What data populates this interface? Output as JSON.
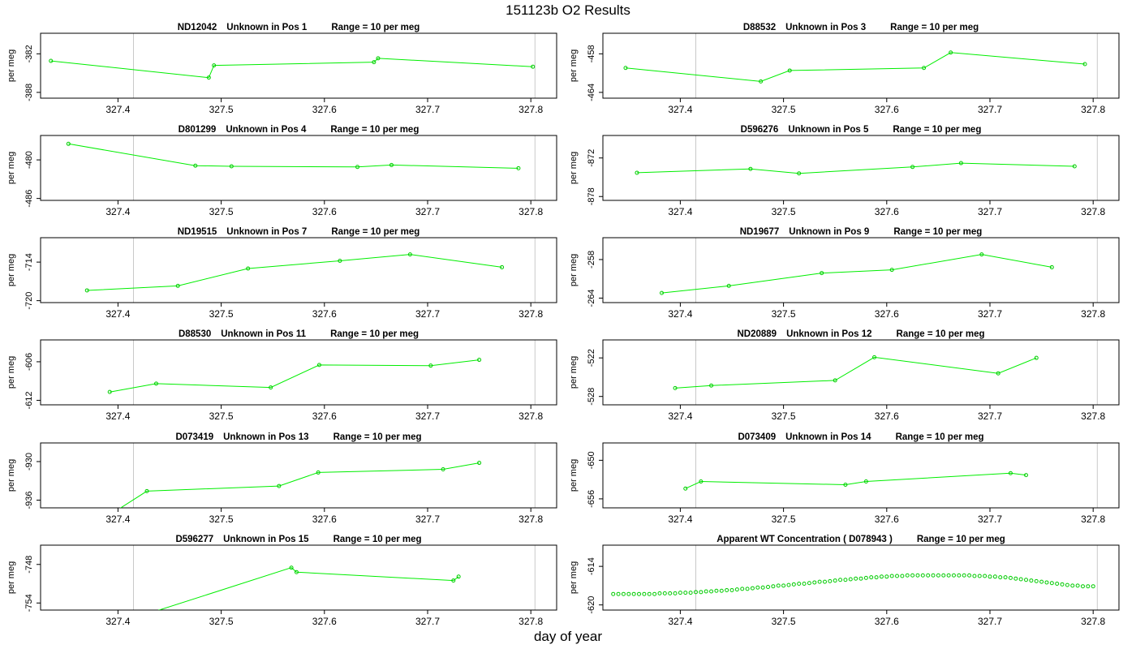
{
  "title": "151123b  O2 Results",
  "xlabel": "day of year",
  "colors": {
    "series": "#00ee00",
    "marker": "#00cc00",
    "vline": "#c8c8c8",
    "axis": "#000000"
  },
  "chart_data": [
    {
      "type": "line",
      "id": "ND12042",
      "pos": "Unknown in Pos 1",
      "range": "Range = 10 per meg",
      "ylabel": "per meg",
      "xlim": [
        327.325,
        327.825
      ],
      "ylim": [
        -388.9,
        -378.8
      ],
      "yticks": [
        -388,
        -382
      ],
      "xticks": [
        327.4,
        327.5,
        327.6,
        327.7,
        327.8
      ],
      "vlines": [
        327.415,
        327.804
      ],
      "x": [
        327.335,
        327.488,
        327.493,
        327.648,
        327.652,
        327.802
      ],
      "y": [
        -383.1,
        -385.7,
        -383.8,
        -383.3,
        -382.7,
        -384.0
      ]
    },
    {
      "type": "line",
      "id": "D88532",
      "pos": "Unknown in Pos 3",
      "range": "Range = 10 per meg",
      "ylabel": "per meg",
      "xlim": [
        327.325,
        327.825
      ],
      "ylim": [
        -464.9,
        -454.8
      ],
      "yticks": [
        -464,
        -458
      ],
      "xticks": [
        327.4,
        327.5,
        327.6,
        327.7,
        327.8
      ],
      "vlines": [
        327.415,
        327.804
      ],
      "x": [
        327.347,
        327.478,
        327.506,
        327.636,
        327.662,
        327.792
      ],
      "y": [
        -460.2,
        -462.3,
        -460.6,
        -460.2,
        -457.8,
        -459.6
      ]
    },
    {
      "type": "line",
      "id": "D801299",
      "pos": "Unknown in Pos 4",
      "range": "Range = 10 per meg",
      "ylabel": "per meg",
      "xlim": [
        327.325,
        327.825
      ],
      "ylim": [
        -486.3,
        -476.2
      ],
      "yticks": [
        -486,
        -480
      ],
      "xticks": [
        327.4,
        327.5,
        327.6,
        327.7,
        327.8
      ],
      "vlines": [
        327.415,
        327.804
      ],
      "x": [
        327.352,
        327.475,
        327.51,
        327.632,
        327.665,
        327.788
      ],
      "y": [
        -477.5,
        -480.9,
        -481.0,
        -481.1,
        -480.8,
        -481.3
      ]
    },
    {
      "type": "line",
      "id": "D596276",
      "pos": "Unknown in Pos 5",
      "range": "Range = 10 per meg",
      "ylabel": "per meg",
      "xlim": [
        327.325,
        327.825
      ],
      "ylim": [
        -878.6,
        -868.5
      ],
      "yticks": [
        -878,
        -872
      ],
      "xticks": [
        327.4,
        327.5,
        327.6,
        327.7,
        327.8
      ],
      "vlines": [
        327.415,
        327.804
      ],
      "x": [
        327.358,
        327.468,
        327.515,
        327.625,
        327.672,
        327.782
      ],
      "y": [
        -874.3,
        -873.7,
        -874.4,
        -873.4,
        -872.8,
        -873.3
      ]
    },
    {
      "type": "line",
      "id": "ND19515",
      "pos": "Unknown in Pos 7",
      "range": "Range = 10 per meg",
      "ylabel": "per meg",
      "xlim": [
        327.325,
        327.825
      ],
      "ylim": [
        -720.3,
        -710.2
      ],
      "yticks": [
        -720,
        -714
      ],
      "xticks": [
        327.4,
        327.5,
        327.6,
        327.7,
        327.8
      ],
      "vlines": [
        327.415,
        327.804
      ],
      "x": [
        327.37,
        327.458,
        327.526,
        327.615,
        327.683,
        327.772
      ],
      "y": [
        -718.4,
        -717.7,
        -715.0,
        -713.8,
        -712.8,
        -714.8
      ]
    },
    {
      "type": "line",
      "id": "ND19677",
      "pos": "Unknown in Pos 9",
      "range": "Range = 10 per meg",
      "ylabel": "per meg",
      "xlim": [
        327.325,
        327.825
      ],
      "ylim": [
        -264.7,
        -254.6
      ],
      "yticks": [
        -264,
        -258
      ],
      "xticks": [
        327.4,
        327.5,
        327.6,
        327.7,
        327.8
      ],
      "vlines": [
        327.415,
        327.804
      ],
      "x": [
        327.382,
        327.447,
        327.537,
        327.605,
        327.692,
        327.76
      ],
      "y": [
        -263.2,
        -262.1,
        -260.1,
        -259.6,
        -257.2,
        -259.2
      ]
    },
    {
      "type": "line",
      "id": "D88530",
      "pos": "Unknown in Pos 11",
      "range": "Range = 10 per meg",
      "ylabel": "per meg",
      "xlim": [
        327.325,
        327.825
      ],
      "ylim": [
        -612.7,
        -602.6
      ],
      "yticks": [
        -612,
        -606
      ],
      "xticks": [
        327.4,
        327.5,
        327.6,
        327.7,
        327.8
      ],
      "vlines": [
        327.415,
        327.804
      ],
      "x": [
        327.392,
        327.437,
        327.548,
        327.595,
        327.703,
        327.75
      ],
      "y": [
        -610.7,
        -609.4,
        -610.0,
        -606.5,
        -606.6,
        -605.7
      ]
    },
    {
      "type": "line",
      "id": "ND20889",
      "pos": "Unknown in Pos 12",
      "range": "Range = 10 per meg",
      "ylabel": "per meg",
      "xlim": [
        327.325,
        327.825
      ],
      "ylim": [
        -529.3,
        -519.2
      ],
      "yticks": [
        -528,
        -522
      ],
      "xticks": [
        327.4,
        327.5,
        327.6,
        327.7,
        327.8
      ],
      "vlines": [
        327.415,
        327.804
      ],
      "x": [
        327.395,
        327.43,
        327.55,
        327.588,
        327.708,
        327.745
      ],
      "y": [
        -526.7,
        -526.3,
        -525.5,
        -521.9,
        -524.4,
        -522.0
      ]
    },
    {
      "type": "line",
      "id": "D073419",
      "pos": "Unknown in Pos 13",
      "range": "Range = 10 per meg",
      "ylabel": "per meg",
      "xlim": [
        327.325,
        327.825
      ],
      "ylim": [
        -937.2,
        -927.1
      ],
      "yticks": [
        -936,
        -930
      ],
      "xticks": [
        327.4,
        327.5,
        327.6,
        327.7,
        327.8
      ],
      "vlines": [
        327.415,
        327.804
      ],
      "x": [
        327.39,
        327.428,
        327.556,
        327.594,
        327.715,
        327.75
      ],
      "y": [
        -938.5,
        -934.6,
        -933.8,
        -931.7,
        -931.2,
        -930.2
      ]
    },
    {
      "type": "line",
      "id": "D073409",
      "pos": "Unknown in Pos 14",
      "range": "Range = 10 per meg",
      "ylabel": "per meg",
      "xlim": [
        327.325,
        327.825
      ],
      "ylim": [
        -657.4,
        -647.3
      ],
      "yticks": [
        -656,
        -650
      ],
      "xticks": [
        327.4,
        327.5,
        327.6,
        327.7,
        327.8
      ],
      "vlines": [
        327.415,
        327.804
      ],
      "x": [
        327.405,
        327.42,
        327.56,
        327.58,
        327.72,
        327.735
      ],
      "y": [
        -654.4,
        -653.3,
        -653.8,
        -653.3,
        -652.0,
        -652.3
      ]
    },
    {
      "type": "line",
      "id": "D596277",
      "pos": "Unknown in Pos 15",
      "range": "Range = 10 per meg",
      "ylabel": "per meg",
      "xlim": [
        327.325,
        327.825
      ],
      "ylim": [
        -755.1,
        -745.0
      ],
      "yticks": [
        -754,
        -748
      ],
      "xticks": [
        327.4,
        327.5,
        327.6,
        327.7,
        327.8
      ],
      "vlines": [
        327.415,
        327.804
      ],
      "x": [
        327.43,
        327.568,
        327.573,
        327.725,
        327.73
      ],
      "y": [
        -755.6,
        -748.5,
        -749.2,
        -750.5,
        -749.9
      ]
    },
    {
      "type": "scatter",
      "id": "",
      "pos": "Apparent WT Concentration ( D078943 )",
      "range": "Range = 10 per meg",
      "ylabel": "per meg",
      "xlim": [
        327.325,
        327.825
      ],
      "ylim": [
        -620.8,
        -610.7
      ],
      "yticks": [
        -620,
        -614
      ],
      "xticks": [
        327.4,
        327.5,
        327.6,
        327.7,
        327.8
      ],
      "vlines": [
        327.415,
        327.804
      ],
      "x": [
        327.335,
        327.34,
        327.345,
        327.35,
        327.355,
        327.36,
        327.365,
        327.37,
        327.375,
        327.38,
        327.385,
        327.39,
        327.395,
        327.4,
        327.405,
        327.41,
        327.415,
        327.42,
        327.425,
        327.43,
        327.435,
        327.44,
        327.445,
        327.45,
        327.455,
        327.46,
        327.465,
        327.47,
        327.475,
        327.48,
        327.485,
        327.49,
        327.495,
        327.5,
        327.505,
        327.51,
        327.515,
        327.52,
        327.525,
        327.53,
        327.535,
        327.54,
        327.545,
        327.55,
        327.555,
        327.56,
        327.565,
        327.57,
        327.575,
        327.58,
        327.585,
        327.59,
        327.595,
        327.6,
        327.605,
        327.61,
        327.615,
        327.62,
        327.625,
        327.63,
        327.635,
        327.64,
        327.645,
        327.65,
        327.655,
        327.66,
        327.665,
        327.67,
        327.675,
        327.68,
        327.685,
        327.69,
        327.695,
        327.7,
        327.705,
        327.71,
        327.715,
        327.72,
        327.725,
        327.73,
        327.735,
        327.74,
        327.745,
        327.75,
        327.755,
        327.76,
        327.765,
        327.77,
        327.775,
        327.78,
        327.785,
        327.79,
        327.795,
        327.8
      ],
      "y": [
        -618.3,
        -618.3,
        -618.3,
        -618.3,
        -618.3,
        -618.3,
        -618.3,
        -618.3,
        -618.3,
        -618.2,
        -618.2,
        -618.2,
        -618.2,
        -618.1,
        -618.1,
        -618.1,
        -618.0,
        -618.0,
        -617.9,
        -617.9,
        -617.8,
        -617.8,
        -617.7,
        -617.7,
        -617.6,
        -617.5,
        -617.5,
        -617.4,
        -617.3,
        -617.3,
        -617.2,
        -617.1,
        -617.0,
        -617.0,
        -616.9,
        -616.8,
        -616.7,
        -616.7,
        -616.6,
        -616.5,
        -616.4,
        -616.4,
        -616.3,
        -616.2,
        -616.1,
        -616.1,
        -616.0,
        -615.9,
        -615.9,
        -615.8,
        -615.7,
        -615.7,
        -615.6,
        -615.6,
        -615.5,
        -615.5,
        -615.5,
        -615.4,
        -615.4,
        -615.4,
        -615.4,
        -615.4,
        -615.4,
        -615.4,
        -615.4,
        -615.4,
        -615.4,
        -615.4,
        -615.4,
        -615.4,
        -615.5,
        -615.5,
        -615.5,
        -615.6,
        -615.6,
        -615.7,
        -615.7,
        -615.8,
        -615.9,
        -616.0,
        -616.1,
        -616.2,
        -616.3,
        -616.4,
        -616.5,
        -616.6,
        -616.7,
        -616.8,
        -616.9,
        -617.0,
        -617.0,
        -617.1,
        -617.1,
        -617.1
      ]
    }
  ]
}
